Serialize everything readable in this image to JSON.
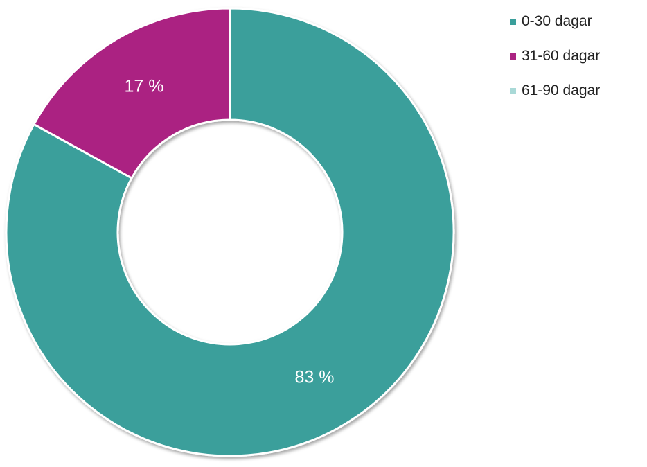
{
  "chart_data": {
    "type": "pie",
    "donut": true,
    "categories": [
      "0-30 dagar",
      "31-60 dagar",
      "61-90 dagar"
    ],
    "values": [
      83,
      17,
      0
    ],
    "data_labels": [
      "83 %",
      "17 %",
      ""
    ],
    "colors": [
      "#3a9f9b",
      "#ab2482",
      "#a9d9d7"
    ],
    "legend_position": "top-right",
    "title": ""
  }
}
